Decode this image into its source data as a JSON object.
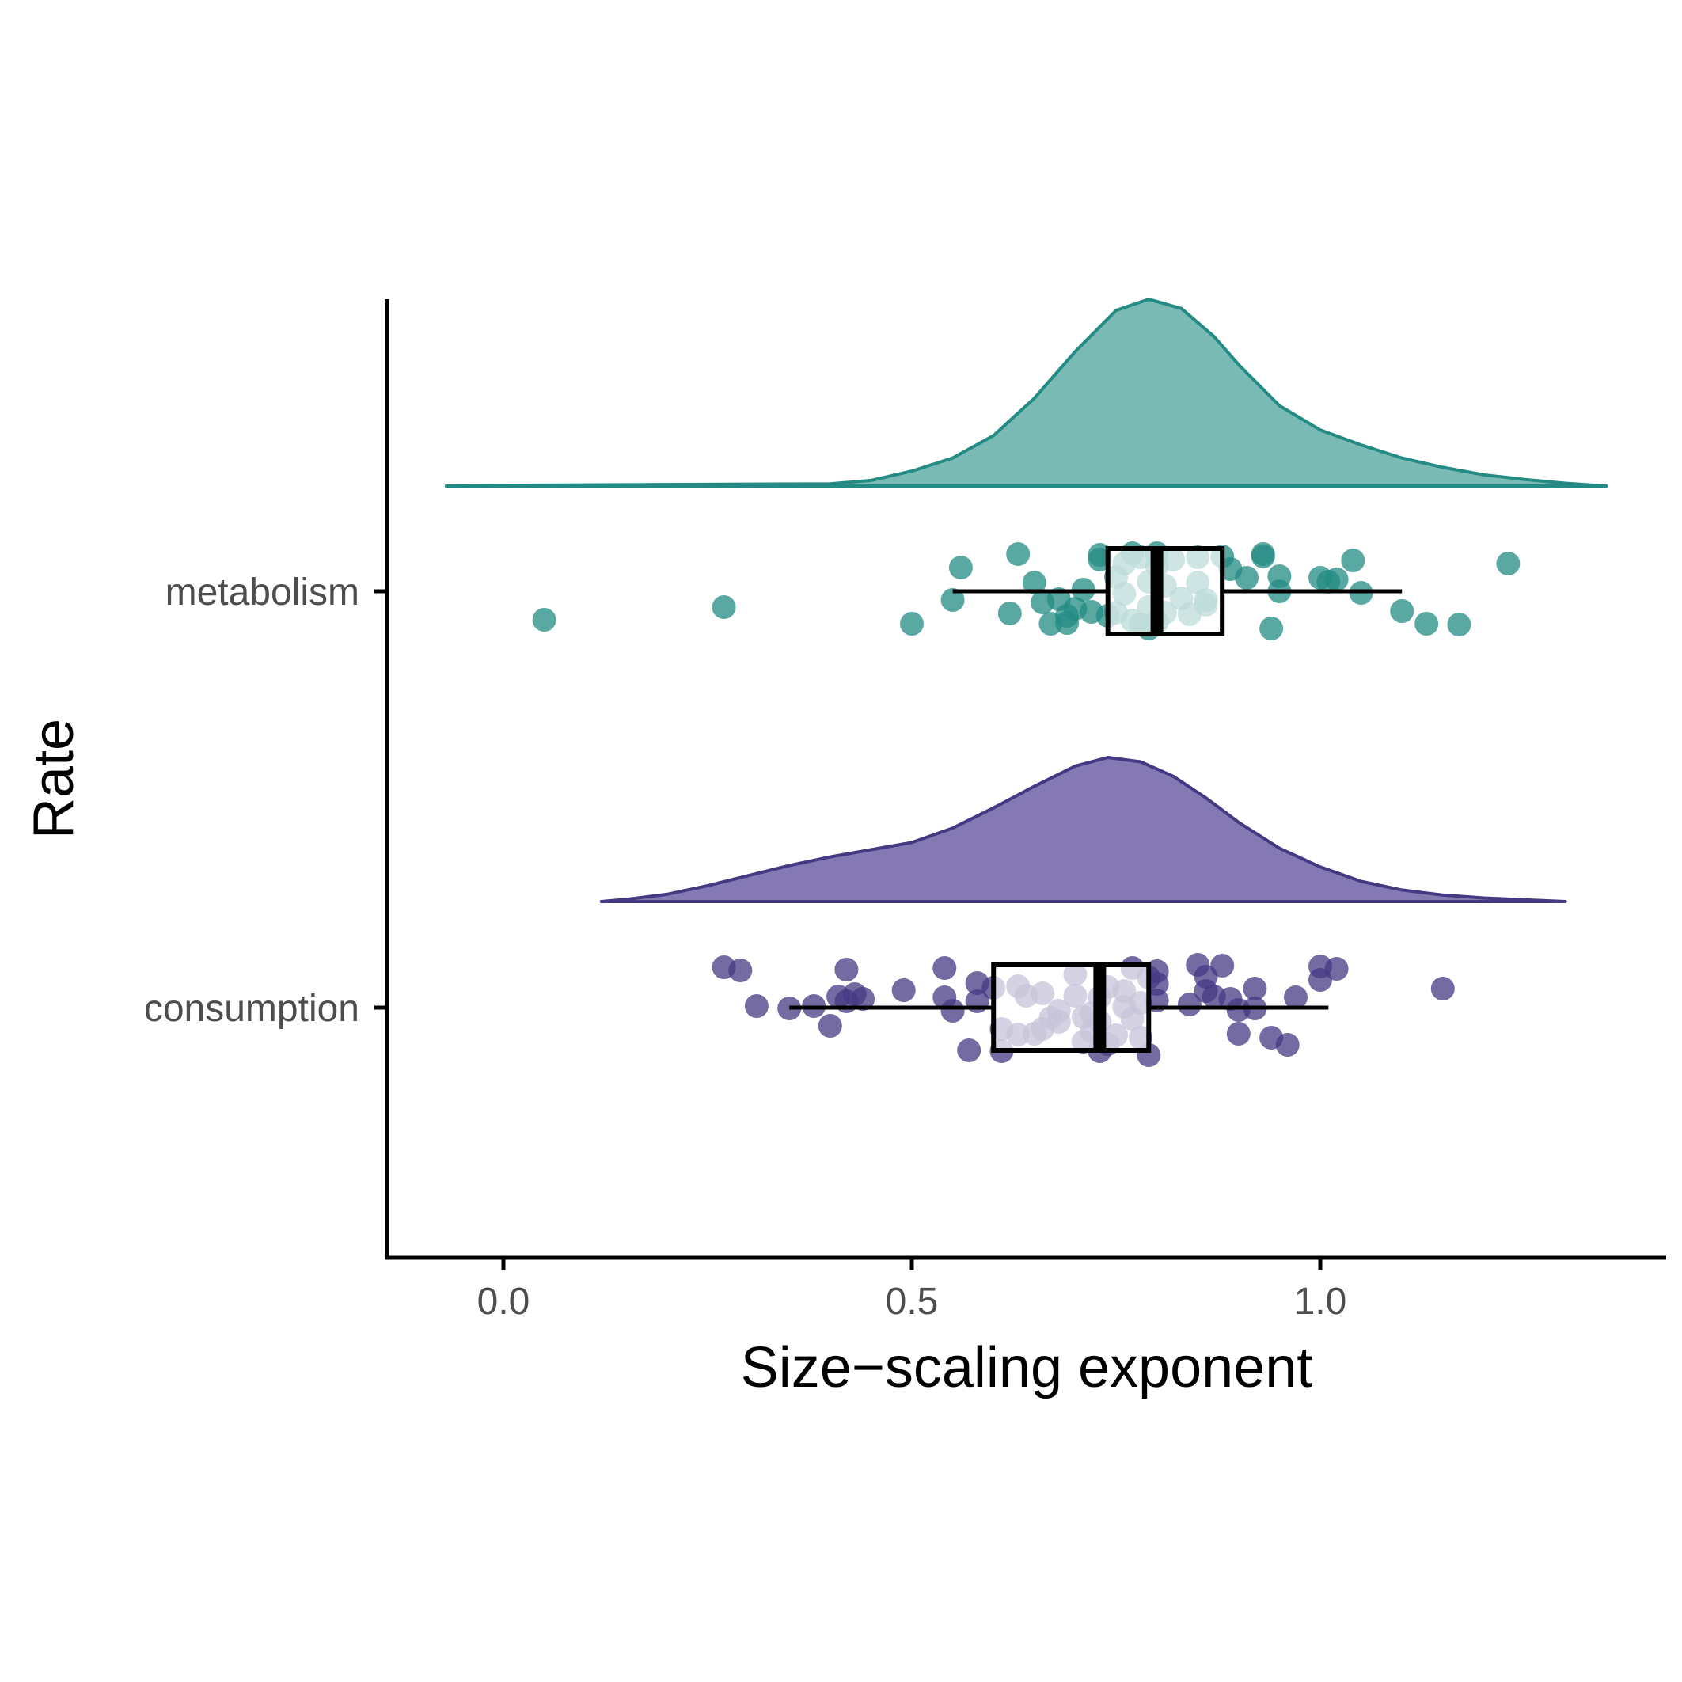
{
  "chart_data": {
    "type": "raincloud",
    "xlabel": "Size−scaling exponent",
    "ylabel": "Rate",
    "xlim": [
      -0.14,
      1.42
    ],
    "x_ticks": [
      0.0,
      0.5,
      1.0
    ],
    "x_tick_labels": [
      "0.0",
      "0.5",
      "1.0"
    ],
    "grid": false,
    "legend": "none",
    "categories": [
      "metabolism",
      "consumption"
    ],
    "series": [
      {
        "name": "metabolism",
        "color": "#238b83",
        "fill": "#4ea39b",
        "box": {
          "whisker_low": 0.55,
          "q1": 0.74,
          "median": 0.8,
          "q3": 0.88,
          "whisker_high": 1.1
        },
        "density": [
          [
            -0.07,
            0.0
          ],
          [
            0.0,
            0.004
          ],
          [
            0.1,
            0.006
          ],
          [
            0.2,
            0.008
          ],
          [
            0.3,
            0.01
          ],
          [
            0.4,
            0.012
          ],
          [
            0.45,
            0.03
          ],
          [
            0.5,
            0.08
          ],
          [
            0.55,
            0.15
          ],
          [
            0.6,
            0.27
          ],
          [
            0.65,
            0.47
          ],
          [
            0.7,
            0.72
          ],
          [
            0.75,
            0.94
          ],
          [
            0.79,
            1.0
          ],
          [
            0.83,
            0.95
          ],
          [
            0.87,
            0.8
          ],
          [
            0.9,
            0.65
          ],
          [
            0.95,
            0.43
          ],
          [
            1.0,
            0.3
          ],
          [
            1.05,
            0.22
          ],
          [
            1.1,
            0.15
          ],
          [
            1.15,
            0.1
          ],
          [
            1.2,
            0.06
          ],
          [
            1.25,
            0.035
          ],
          [
            1.3,
            0.015
          ],
          [
            1.35,
            0.0
          ]
        ],
        "points": [
          [
            0.05,
            -0.36
          ],
          [
            0.27,
            -0.2
          ],
          [
            0.5,
            -0.41
          ],
          [
            0.55,
            -0.11
          ],
          [
            0.56,
            0.3
          ],
          [
            0.63,
            0.47
          ],
          [
            0.62,
            -0.28
          ],
          [
            0.65,
            0.11
          ],
          [
            0.66,
            -0.14
          ],
          [
            0.67,
            -0.41
          ],
          [
            0.68,
            -0.1
          ],
          [
            0.69,
            -0.31
          ],
          [
            0.69,
            -0.4
          ],
          [
            0.7,
            -0.22
          ],
          [
            0.71,
            0.02
          ],
          [
            0.72,
            -0.26
          ],
          [
            0.73,
            0.4
          ],
          [
            0.73,
            0.46
          ],
          [
            0.74,
            -0.31
          ],
          [
            0.75,
            0.18
          ],
          [
            0.75,
            -0.27
          ],
          [
            0.76,
            0.35
          ],
          [
            0.76,
            -0.03
          ],
          [
            0.77,
            0.48
          ],
          [
            0.77,
            -0.37
          ],
          [
            0.78,
            0.43
          ],
          [
            0.78,
            -0.42
          ],
          [
            0.79,
            0.12
          ],
          [
            0.79,
            -0.2
          ],
          [
            0.79,
            -0.47
          ],
          [
            0.8,
            0.48
          ],
          [
            0.8,
            0.32
          ],
          [
            0.8,
            -0.39
          ],
          [
            0.81,
            0.07
          ],
          [
            0.81,
            -0.27
          ],
          [
            0.82,
            0.4
          ],
          [
            0.83,
            -0.09
          ],
          [
            0.84,
            -0.29
          ],
          [
            0.85,
            0.43
          ],
          [
            0.85,
            0.11
          ],
          [
            0.86,
            -0.11
          ],
          [
            0.86,
            -0.17
          ],
          [
            0.88,
            0.44
          ],
          [
            0.89,
            0.28
          ],
          [
            0.91,
            0.17
          ],
          [
            0.93,
            0.44
          ],
          [
            0.93,
            0.47
          ],
          [
            0.95,
            0.0
          ],
          [
            0.95,
            0.19
          ],
          [
            0.94,
            -0.47
          ],
          [
            1.0,
            0.17
          ],
          [
            1.01,
            0.12
          ],
          [
            1.02,
            0.15
          ],
          [
            1.04,
            0.39
          ],
          [
            1.05,
            -0.02
          ],
          [
            1.1,
            -0.25
          ],
          [
            1.13,
            -0.41
          ],
          [
            1.17,
            -0.42
          ],
          [
            1.23,
            0.35
          ]
        ]
      },
      {
        "name": "consumption",
        "color": "#443983",
        "fill": "#5b4c98",
        "box": {
          "whisker_low": 0.35,
          "q1": 0.6,
          "median": 0.73,
          "q3": 0.79,
          "whisker_high": 1.01
        },
        "density": [
          [
            0.12,
            0.0
          ],
          [
            0.15,
            0.015
          ],
          [
            0.2,
            0.05
          ],
          [
            0.25,
            0.11
          ],
          [
            0.3,
            0.18
          ],
          [
            0.35,
            0.25
          ],
          [
            0.4,
            0.31
          ],
          [
            0.45,
            0.36
          ],
          [
            0.5,
            0.41
          ],
          [
            0.55,
            0.51
          ],
          [
            0.6,
            0.65
          ],
          [
            0.65,
            0.8
          ],
          [
            0.7,
            0.94
          ],
          [
            0.74,
            1.0
          ],
          [
            0.78,
            0.97
          ],
          [
            0.82,
            0.87
          ],
          [
            0.86,
            0.72
          ],
          [
            0.9,
            0.55
          ],
          [
            0.95,
            0.37
          ],
          [
            1.0,
            0.24
          ],
          [
            1.05,
            0.14
          ],
          [
            1.1,
            0.08
          ],
          [
            1.15,
            0.045
          ],
          [
            1.2,
            0.025
          ],
          [
            1.25,
            0.012
          ],
          [
            1.3,
            0.0
          ]
        ],
        "points": [
          [
            0.27,
            0.51
          ],
          [
            0.29,
            0.47
          ],
          [
            0.31,
            0.02
          ],
          [
            0.35,
            -0.01
          ],
          [
            0.38,
            0.02
          ],
          [
            0.4,
            -0.23
          ],
          [
            0.41,
            0.14
          ],
          [
            0.42,
            0.48
          ],
          [
            0.42,
            0.08
          ],
          [
            0.43,
            0.17
          ],
          [
            0.44,
            0.11
          ],
          [
            0.49,
            0.22
          ],
          [
            0.54,
            0.5
          ],
          [
            0.54,
            0.13
          ],
          [
            0.55,
            -0.04
          ],
          [
            0.57,
            -0.54
          ],
          [
            0.58,
            0.31
          ],
          [
            0.58,
            0.08
          ],
          [
            0.6,
            0.25
          ],
          [
            0.61,
            -0.55
          ],
          [
            0.61,
            -0.27
          ],
          [
            0.63,
            -0.34
          ],
          [
            0.63,
            0.27
          ],
          [
            0.64,
            0.15
          ],
          [
            0.65,
            -0.33
          ],
          [
            0.66,
            -0.27
          ],
          [
            0.66,
            0.18
          ],
          [
            0.67,
            -0.13
          ],
          [
            0.68,
            -0.04
          ],
          [
            0.68,
            -0.18
          ],
          [
            0.7,
            0.42
          ],
          [
            0.7,
            0.15
          ],
          [
            0.71,
            -0.43
          ],
          [
            0.71,
            -0.12
          ],
          [
            0.72,
            -0.07
          ],
          [
            0.72,
            -0.3
          ],
          [
            0.73,
            0.13
          ],
          [
            0.73,
            -0.18
          ],
          [
            0.73,
            -0.55
          ],
          [
            0.74,
            0.26
          ],
          [
            0.74,
            -0.46
          ],
          [
            0.75,
            -0.35
          ],
          [
            0.76,
            0.21
          ],
          [
            0.76,
            0.01
          ],
          [
            0.77,
            0.5
          ],
          [
            0.77,
            -0.14
          ],
          [
            0.78,
            0.06
          ],
          [
            0.78,
            -0.38
          ],
          [
            0.79,
            0.38
          ],
          [
            0.79,
            -0.6
          ],
          [
            0.8,
            0.46
          ],
          [
            0.8,
            0.09
          ],
          [
            0.8,
            0.3
          ],
          [
            0.84,
            0.04
          ],
          [
            0.85,
            0.54
          ],
          [
            0.86,
            0.21
          ],
          [
            0.86,
            0.39
          ],
          [
            0.87,
            0.14
          ],
          [
            0.88,
            0.53
          ],
          [
            0.89,
            0.11
          ],
          [
            0.9,
            -0.33
          ],
          [
            0.9,
            -0.03
          ],
          [
            0.92,
            0.24
          ],
          [
            0.92,
            -0.01
          ],
          [
            0.94,
            -0.38
          ],
          [
            0.96,
            -0.47
          ],
          [
            0.97,
            0.13
          ],
          [
            1.0,
            0.35
          ],
          [
            1.0,
            0.52
          ],
          [
            1.02,
            0.49
          ],
          [
            1.15,
            0.24
          ]
        ]
      }
    ]
  }
}
